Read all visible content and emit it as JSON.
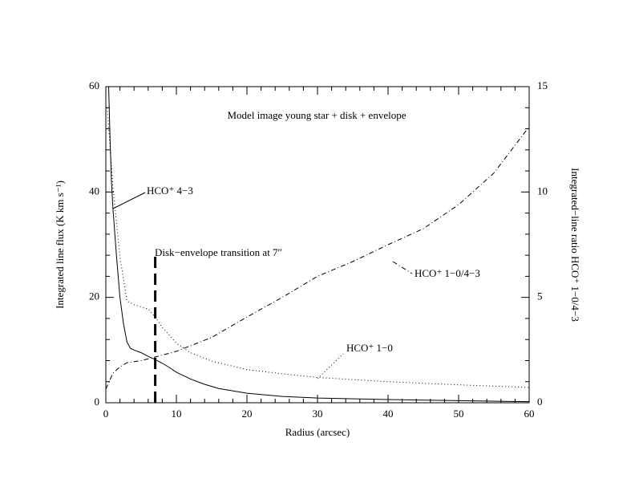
{
  "chart_data": {
    "type": "line",
    "title": "Model image young star + disk + envelope",
    "xlabel": "Radius (arcsec)",
    "ylabel": "Integrated line flux (K km s⁻¹)",
    "y2label": "Integrated−line ratio HCO⁺ 1−0/4−3",
    "xlim": [
      0,
      60
    ],
    "xticks": [
      0,
      10,
      20,
      30,
      40,
      50,
      60
    ],
    "ylim": [
      0,
      60
    ],
    "yticks": [
      0,
      20,
      40,
      60
    ],
    "y2lim": [
      0,
      15
    ],
    "y2ticks": [
      0,
      5,
      10,
      15
    ],
    "series": [
      {
        "name": "HCO⁺ 4−3",
        "color": "#000000",
        "dash": "solid",
        "x": [
          0.4,
          0.6,
          0.8,
          1,
          1.5,
          2,
          2.5,
          3,
          3.5,
          4,
          5,
          6,
          7,
          8,
          9,
          10,
          12,
          14,
          16,
          20,
          25,
          30,
          40,
          50,
          60
        ],
        "values": [
          60,
          50,
          42,
          37,
          28,
          20,
          15,
          11.5,
          10.3,
          10,
          9.5,
          8.8,
          8.2,
          7.5,
          6.7,
          5.8,
          4.5,
          3.5,
          2.7,
          1.8,
          1.2,
          0.9,
          0.6,
          0.4,
          0.2
        ]
      },
      {
        "name": "HCO⁺ 1−0",
        "color": "#000000",
        "dash": "dotted",
        "x": [
          0.2,
          1,
          2,
          3,
          4,
          6,
          7,
          8,
          10,
          12,
          15,
          20,
          25,
          30,
          40,
          50,
          60
        ],
        "values": [
          56,
          41,
          27.7,
          19.3,
          18.6,
          17.8,
          16.3,
          14.3,
          11.3,
          9.5,
          7.9,
          6.3,
          5.5,
          4.8,
          4.0,
          3.4,
          2.9
        ]
      },
      {
        "name": "HCO⁺ 1−0/4−3",
        "color": "#000000",
        "dash": "dashdot",
        "axis": "y2",
        "x": [
          0,
          1,
          2,
          3,
          5,
          7,
          10,
          15,
          20,
          25,
          30,
          35,
          40,
          45,
          50,
          55,
          60
        ],
        "values": [
          0.65,
          1.4,
          1.7,
          1.9,
          2.0,
          2.17,
          2.44,
          3.1,
          4.07,
          5.0,
          6.0,
          6.7,
          7.5,
          8.26,
          9.4,
          10.9,
          13.1
        ]
      }
    ],
    "vline": {
      "x": 7,
      "ymax": 28,
      "label": "Disk−envelope transition at 7″"
    }
  }
}
